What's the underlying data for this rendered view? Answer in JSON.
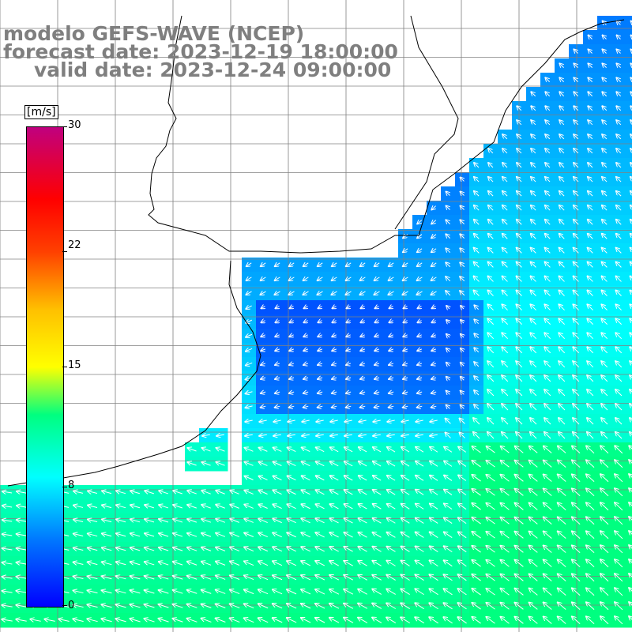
{
  "titles": {
    "model": "modelo GEFS-WAVE (NCEP)",
    "forecast": "forecast date: 2023-12-19 18:00:00",
    "valid": "valid date: 2023-12-24 09:00:00"
  },
  "colorbar": {
    "unit": "[m/s]",
    "ticks": [
      {
        "value": 30,
        "label": "30"
      },
      {
        "value": 22,
        "label": "22"
      },
      {
        "value": 15,
        "label": "15"
      },
      {
        "value": 8,
        "label": "8"
      },
      {
        "value": 0,
        "label": "0"
      }
    ],
    "range": [
      0,
      30
    ],
    "colors": [
      "#0000ff",
      "#00b0ff",
      "#00ffff",
      "#00ff00",
      "#ffff00",
      "#ff8000",
      "#ff0000",
      "#c0007f"
    ]
  },
  "map": {
    "type": "wind-speed-field-with-vectors",
    "land_color": "#ffffff",
    "grid_color": "#808080",
    "coastline_color": "#000000",
    "arrow_color": "#ffffff"
  }
}
